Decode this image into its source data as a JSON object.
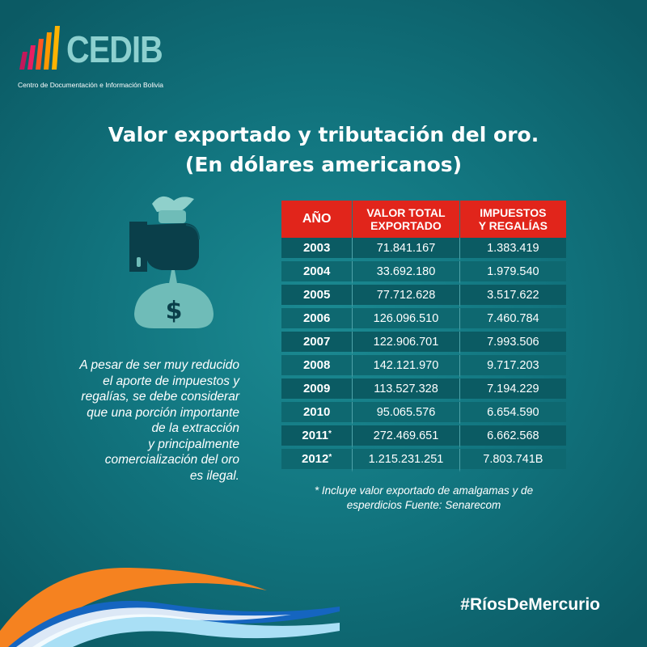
{
  "logo": {
    "name": "CEDIB",
    "subtitle": "Centro de Documentación e Información Bolivia",
    "bar_colors": [
      "#c2185b",
      "#e91e63",
      "#ff5722",
      "#ff9800",
      "#ffb300"
    ]
  },
  "title": {
    "line1": "Valor exportado y tributación del oro.",
    "line2": "(En dólares americanos)"
  },
  "illustration": {
    "icon": "money-bag-hand-icon",
    "symbol": "$"
  },
  "caption": {
    "lines": [
      "A pesar de ser muy reducido",
      "el aporte de impuestos y",
      "regalías, se debe considerar",
      "que una porción importante",
      "de la extracción",
      "y principalmente",
      "comercialización del oro",
      "es ilegal."
    ]
  },
  "table": {
    "headers": [
      "AÑO",
      "VALOR TOTAL EXPORTADO",
      "IMPUESTOS Y REGALÍAS"
    ],
    "header_lines": [
      [
        "AÑO"
      ],
      [
        "VALOR TOTAL",
        "EXPORTADO"
      ],
      [
        "IMPUESTOS",
        "Y REGALÍAS"
      ]
    ],
    "rows": [
      {
        "year": "2003",
        "mark": "",
        "value": "71.841.167",
        "tax": "1.383.419"
      },
      {
        "year": "2004",
        "mark": "",
        "value": "33.692.180",
        "tax": "1.979.540"
      },
      {
        "year": "2005",
        "mark": "",
        "value": "77.712.628",
        "tax": "3.517.622"
      },
      {
        "year": "2006",
        "mark": "",
        "value": "126.096.510",
        "tax": "7.460.784"
      },
      {
        "year": "2007",
        "mark": "",
        "value": "122.906.701",
        "tax": "7.993.506"
      },
      {
        "year": "2008",
        "mark": "",
        "value": "142.121.970",
        "tax": "9.717.203"
      },
      {
        "year": "2009",
        "mark": "",
        "value": "113.527.328",
        "tax": "7.194.229"
      },
      {
        "year": "2010",
        "mark": "",
        "value": "95.065.576",
        "tax": "6.654.590"
      },
      {
        "year": "2011",
        "mark": "*",
        "value": "272.469.651",
        "tax": "6.662.568"
      },
      {
        "year": "2012",
        "mark": "*",
        "value": "1.215.231.251",
        "tax": "7.803.741B"
      }
    ],
    "header_color": "#e1251b"
  },
  "footnote": {
    "line1": "* Incluye valor exportado de amalgamas y de",
    "line2": "esperdicios Fuente: Senarecom"
  },
  "hashtag": "#RíosDeMercurio",
  "colors": {
    "background": "#127680",
    "accent_red": "#e1251b",
    "wave_orange": "#f58220",
    "wave_light_blue": "#a9dff5",
    "wave_dark_blue": "#1565c0"
  }
}
